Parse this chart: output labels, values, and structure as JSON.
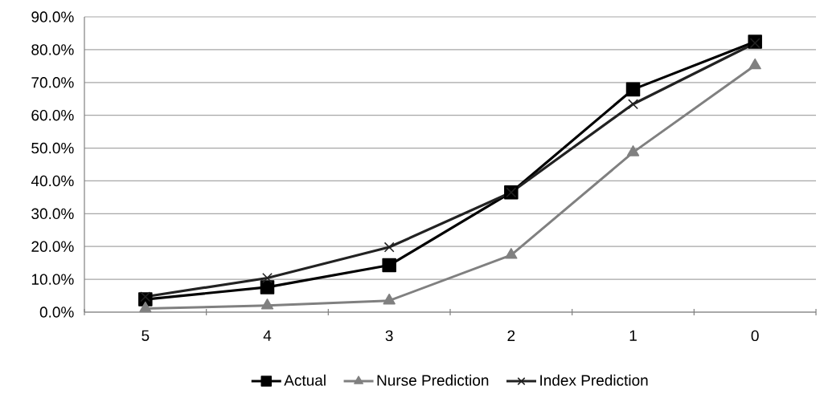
{
  "chart_data": {
    "type": "line",
    "categories": [
      "5",
      "4",
      "3",
      "2",
      "1",
      "0"
    ],
    "series": [
      {
        "name": "Actual",
        "color": "#000000",
        "marker": "square",
        "values": [
          3.9,
          7.6,
          14.3,
          36.5,
          67.9,
          82.4
        ]
      },
      {
        "name": "Nurse Prediction",
        "color": "#808080",
        "marker": "triangle",
        "values": [
          1.1,
          2.0,
          3.5,
          17.4,
          48.7,
          75.2
        ]
      },
      {
        "name": "Index Prediction",
        "color": "#222222",
        "marker": "cross",
        "values": [
          4.7,
          10.4,
          19.8,
          36.5,
          63.4,
          82.0
        ]
      }
    ],
    "ylim": [
      0,
      90
    ],
    "yticks": [
      {
        "value": 0,
        "label": "0.0%"
      },
      {
        "value": 10,
        "label": "10.0%"
      },
      {
        "value": 20,
        "label": "20.0%"
      },
      {
        "value": 30,
        "label": "30.0%"
      },
      {
        "value": 40,
        "label": "40.0%"
      },
      {
        "value": 50,
        "label": "50.0%"
      },
      {
        "value": 60,
        "label": "60.0%"
      },
      {
        "value": 70,
        "label": "70.0%"
      },
      {
        "value": 80,
        "label": "80.0%"
      },
      {
        "value": 90,
        "label": "90.0%"
      }
    ],
    "grid": "y",
    "legend": "bottom",
    "line_style": "solid"
  }
}
